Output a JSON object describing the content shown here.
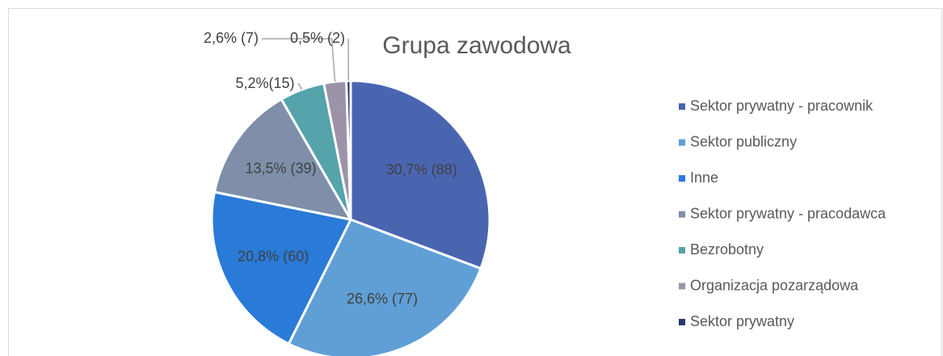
{
  "chart_data": {
    "type": "pie",
    "title": "Grupa zawodowa",
    "categories": [
      "Sektor prywatny - pracownik",
      "Sektor publiczny",
      "Inne",
      "Sektor prywatny - pracodawca",
      "Bezrobotny",
      "Organizacja pozarządowa",
      "Sektor prywatny"
    ],
    "values": [
      30.7,
      26.6,
      20.8,
      13.5,
      5.2,
      2.6,
      0.5
    ],
    "value_labels": [
      "30,7% (88)",
      "26,6% (77)",
      "20,8% (60)",
      "13,5% (39)",
      "5,2%(15)",
      "2,6% (7)",
      "0,5% (2)"
    ],
    "colors": [
      "#4a65b0",
      "#5f9fd6",
      "#2a7ad8",
      "#7f8fa9",
      "#55a3ab",
      "#9d93a8",
      "#26386b"
    ],
    "legend": "right"
  }
}
